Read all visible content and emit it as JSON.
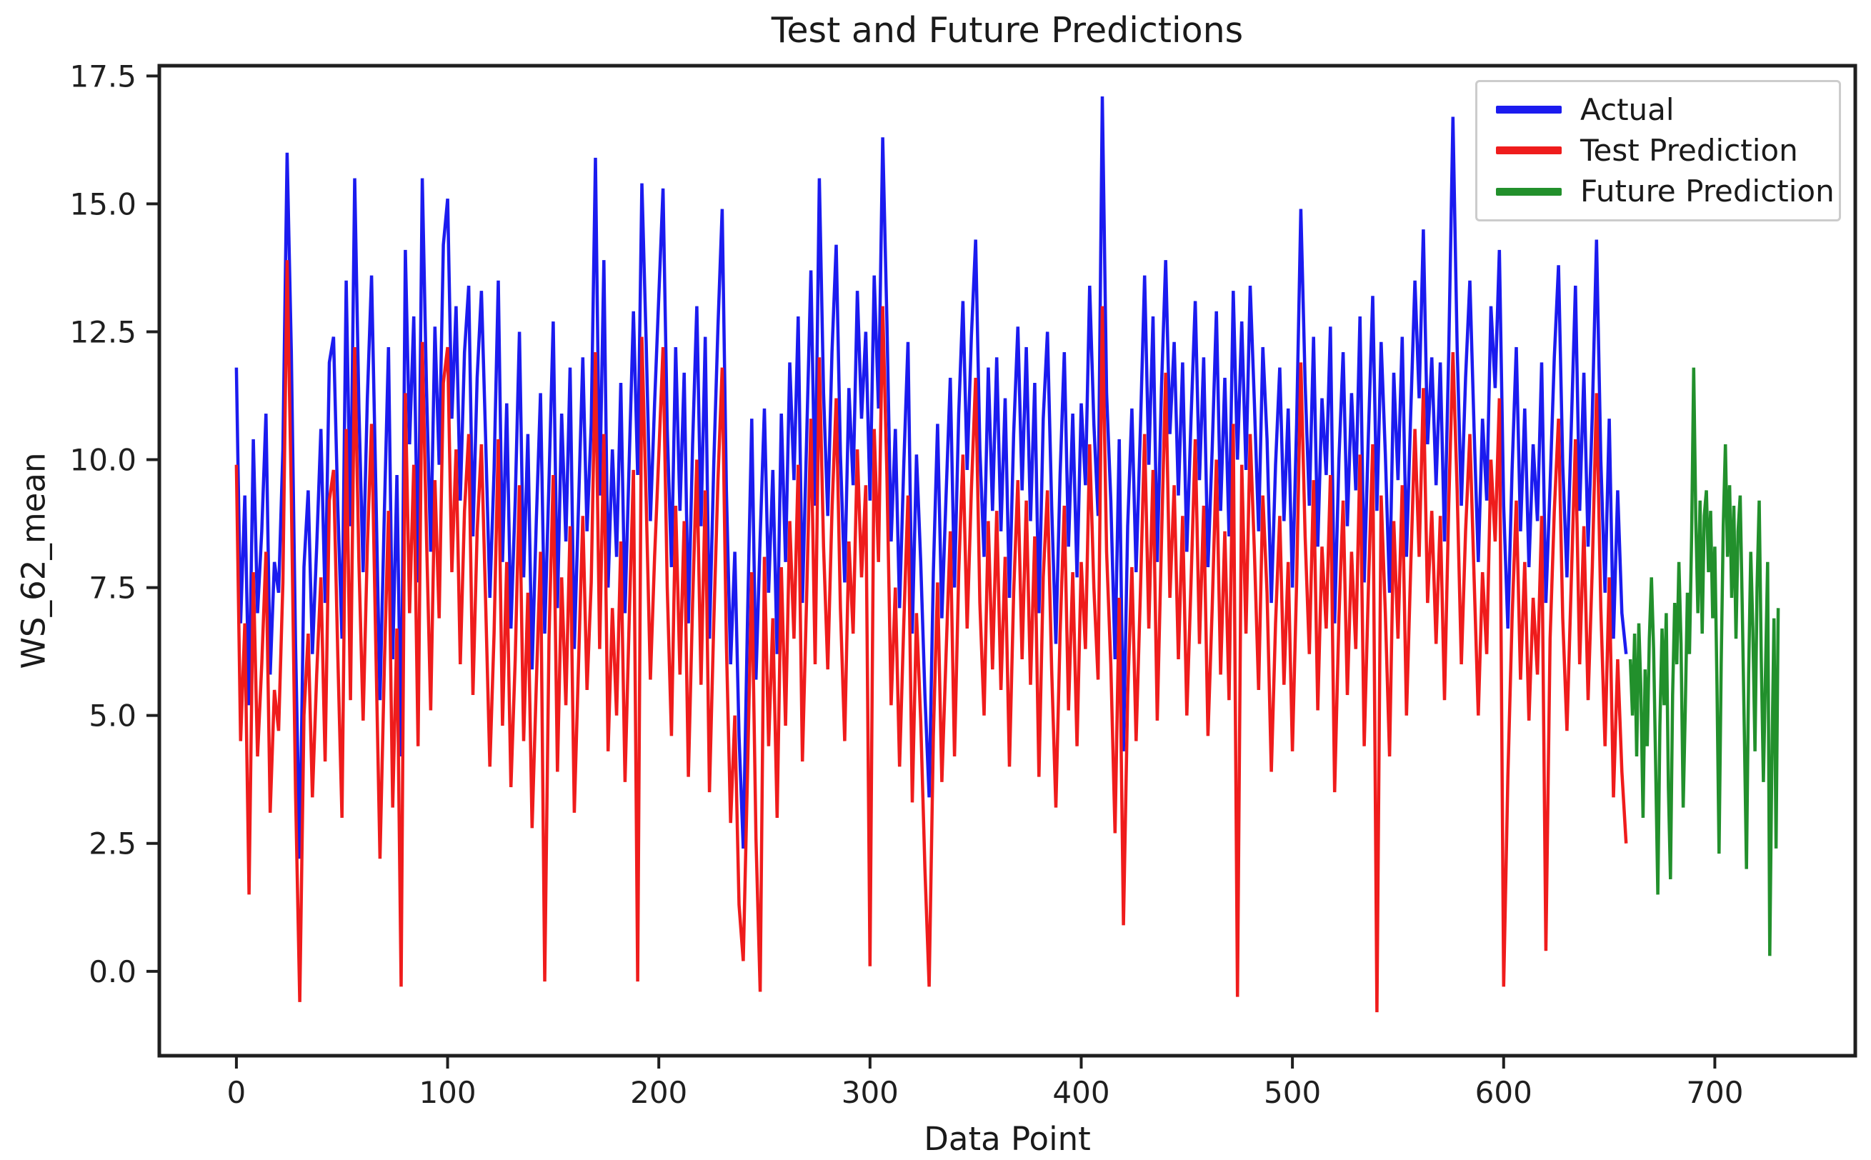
{
  "title": "Test and Future Predictions",
  "axes": {
    "xlabel": "Data Point",
    "ylabel": "WS_62_mean"
  },
  "legend": {
    "position": "upper right",
    "entries": [
      {
        "label": "Actual",
        "color": "#1b1bef"
      },
      {
        "label": "Test Prediction",
        "color": "#ef1c1c"
      },
      {
        "label": "Future Prediction",
        "color": "#22902c"
      }
    ]
  },
  "chart_data": {
    "type": "line",
    "title": "Test and Future Predictions",
    "xlabel": "Data Point",
    "ylabel": "WS_62_mean",
    "xlim": [
      -36.5,
      766.5
    ],
    "ylim": [
      -1.65,
      17.7
    ],
    "grid": false,
    "legend_position": "upper right",
    "x_ticks": [
      {
        "value": 0,
        "label": "0"
      },
      {
        "value": 100,
        "label": "100"
      },
      {
        "value": 200,
        "label": "200"
      },
      {
        "value": 300,
        "label": "300"
      },
      {
        "value": 400,
        "label": "400"
      },
      {
        "value": 500,
        "label": "500"
      },
      {
        "value": 600,
        "label": "600"
      },
      {
        "value": 700,
        "label": "700"
      }
    ],
    "y_ticks": [
      {
        "value": 0,
        "label": "0.0"
      },
      {
        "value": 2.5,
        "label": "2.5"
      },
      {
        "value": 5,
        "label": "5.0"
      },
      {
        "value": 7.5,
        "label": "7.5"
      },
      {
        "value": 10,
        "label": "10.0"
      },
      {
        "value": 12.5,
        "label": "12.5"
      },
      {
        "value": 15,
        "label": "15.0"
      },
      {
        "value": 17.5,
        "label": "17.5"
      }
    ],
    "series": [
      {
        "name": "Actual",
        "color": "#1b1bef",
        "x_start": 0,
        "x_step": 2,
        "values": [
          11.8,
          6.8,
          9.3,
          5.2,
          10.4,
          7.0,
          8.6,
          10.9,
          5.8,
          8.0,
          7.4,
          10.2,
          16.0,
          12.1,
          6.4,
          2.2,
          7.9,
          9.4,
          6.2,
          8.3,
          10.6,
          7.2,
          11.9,
          12.4,
          9.1,
          6.5,
          13.5,
          8.7,
          15.5,
          11.0,
          7.8,
          11.2,
          13.6,
          9.5,
          5.3,
          8.9,
          12.2,
          6.1,
          9.7,
          4.2,
          14.1,
          10.3,
          12.8,
          7.6,
          15.5,
          11.4,
          8.2,
          12.6,
          9.9,
          14.2,
          15.1,
          10.8,
          13.0,
          9.2,
          12.1,
          13.4,
          8.5,
          11.6,
          13.3,
          10.4,
          7.3,
          9.8,
          13.5,
          8.0,
          11.1,
          6.7,
          9.2,
          12.5,
          7.7,
          10.5,
          5.9,
          8.8,
          11.3,
          6.6,
          9.6,
          12.7,
          7.1,
          10.9,
          8.4,
          11.8,
          6.3,
          9.1,
          12.0,
          8.6,
          10.7,
          15.9,
          9.3,
          13.9,
          7.5,
          10.2,
          8.1,
          11.5,
          7.0,
          10.0,
          12.9,
          9.7,
          15.4,
          12.3,
          8.8,
          11.1,
          13.2,
          15.3,
          10.6,
          7.9,
          12.2,
          9.0,
          11.7,
          6.8,
          10.3,
          13.0,
          8.7,
          12.4,
          6.5,
          9.9,
          12.6,
          14.9,
          9.4,
          6.0,
          8.2,
          4.6,
          2.4,
          6.9,
          10.8,
          5.7,
          8.5,
          11.0,
          7.4,
          9.8,
          6.2,
          10.9,
          8.0,
          11.9,
          9.6,
          12.8,
          7.2,
          10.4,
          13.7,
          9.1,
          15.5,
          11.3,
          8.9,
          12.1,
          14.2,
          10.1,
          7.6,
          11.4,
          9.5,
          13.3,
          10.8,
          12.5,
          9.2,
          13.6,
          11.0,
          16.3,
          12.7,
          8.4,
          10.6,
          7.1,
          9.9,
          12.3,
          6.6,
          10.1,
          8.0,
          5.4,
          3.4,
          7.8,
          10.7,
          6.9,
          9.3,
          11.6,
          7.5,
          10.9,
          13.1,
          9.8,
          12.4,
          14.3,
          10.2,
          8.1,
          11.8,
          9.0,
          12.0,
          8.6,
          11.2,
          7.3,
          10.5,
          12.6,
          9.4,
          12.2,
          8.8,
          11.5,
          7.0,
          10.8,
          12.5,
          9.1,
          6.4,
          9.7,
          12.1,
          8.3,
          10.9,
          7.7,
          11.1,
          9.5,
          13.4,
          10.7,
          8.9,
          17.1,
          11.3,
          9.2,
          6.1,
          10.4,
          4.3,
          8.7,
          11.0,
          7.8,
          10.6,
          13.6,
          9.9,
          12.8,
          8.0,
          11.4,
          13.9,
          10.5,
          12.3,
          9.3,
          11.9,
          8.2,
          10.8,
          13.1,
          9.6,
          12.0,
          7.9,
          10.2,
          12.9,
          9.0,
          11.6,
          8.5,
          13.3,
          10.0,
          12.7,
          9.8,
          13.4,
          11.1,
          8.6,
          12.2,
          10.4,
          7.2,
          9.9,
          11.8,
          8.8,
          11.0,
          7.5,
          10.7,
          14.9,
          11.5,
          9.1,
          12.4,
          8.3,
          11.2,
          9.7,
          12.6,
          6.8,
          10.0,
          12.1,
          8.7,
          11.3,
          9.4,
          12.8,
          7.6,
          10.5,
          13.2,
          9.0,
          12.3,
          10.1,
          7.4,
          11.7,
          9.6,
          12.4,
          8.1,
          10.9,
          13.5,
          11.2,
          14.5,
          10.3,
          12.0,
          9.5,
          11.9,
          8.4,
          12.1,
          16.7,
          12.2,
          9.1,
          11.6,
          13.5,
          10.6,
          8.0,
          10.8,
          9.2,
          13.0,
          11.4,
          14.1,
          9.1,
          6.7,
          9.8,
          12.2,
          8.6,
          11.0,
          7.9,
          10.3,
          8.8,
          11.9,
          7.2,
          9.5,
          12.0,
          13.8,
          9.9,
          7.7,
          10.6,
          13.4,
          9.0,
          11.7,
          8.3,
          10.9,
          14.3,
          10.0,
          7.4,
          10.8,
          6.5,
          9.4,
          7.0,
          6.2
        ]
      },
      {
        "name": "Test Prediction",
        "color": "#ef1c1c",
        "x_start": 0,
        "x_step": 2,
        "values": [
          9.9,
          4.5,
          6.8,
          1.5,
          7.8,
          4.2,
          6.0,
          8.2,
          3.1,
          5.5,
          4.7,
          7.6,
          13.9,
          9.3,
          3.5,
          -0.6,
          5.0,
          6.6,
          3.4,
          5.8,
          7.7,
          4.1,
          9.2,
          9.8,
          6.2,
          3.0,
          10.6,
          5.3,
          12.2,
          8.0,
          4.9,
          8.3,
          10.7,
          6.4,
          2.2,
          5.9,
          9.0,
          3.2,
          6.7,
          -0.3,
          11.3,
          7.0,
          9.9,
          4.4,
          12.3,
          8.5,
          5.1,
          9.6,
          6.9,
          11.5,
          12.2,
          7.8,
          10.2,
          6.0,
          9.0,
          10.5,
          5.4,
          8.6,
          10.3,
          7.2,
          4.0,
          6.6,
          10.4,
          4.8,
          8.0,
          3.6,
          6.1,
          9.5,
          4.5,
          7.4,
          2.8,
          5.6,
          8.2,
          -0.2,
          6.5,
          9.7,
          3.9,
          7.7,
          5.2,
          8.7,
          3.1,
          6.0,
          8.9,
          5.5,
          7.6,
          12.1,
          6.3,
          10.5,
          4.3,
          7.1,
          5.0,
          8.4,
          3.7,
          6.9,
          9.8,
          -0.2,
          12.4,
          9.2,
          5.7,
          8.1,
          10.1,
          12.2,
          7.5,
          4.6,
          9.1,
          5.8,
          8.8,
          3.8,
          7.2,
          10.0,
          5.6,
          9.4,
          3.5,
          6.8,
          9.6,
          11.8,
          6.4,
          2.9,
          5.0,
          1.3,
          0.2,
          3.9,
          7.8,
          2.6,
          -0.4,
          8.1,
          4.4,
          6.9,
          3.0,
          7.9,
          4.8,
          8.8,
          6.5,
          9.9,
          4.1,
          7.3,
          10.8,
          6.0,
          12.0,
          8.3,
          5.9,
          9.0,
          11.2,
          7.1,
          4.5,
          8.4,
          6.6,
          10.2,
          7.7,
          9.5,
          0.1,
          10.6,
          8.0,
          13.0,
          9.7,
          5.2,
          7.5,
          4.0,
          6.8,
          9.3,
          3.3,
          7.0,
          4.9,
          2.0,
          -0.3,
          4.6,
          7.6,
          3.7,
          6.2,
          8.6,
          4.2,
          7.8,
          10.1,
          6.7,
          9.4,
          11.6,
          7.2,
          5.0,
          8.8,
          5.9,
          9.0,
          5.5,
          8.1,
          4.0,
          7.4,
          9.6,
          6.1,
          9.2,
          5.6,
          8.5,
          3.8,
          7.7,
          9.4,
          5.9,
          3.2,
          6.6,
          9.1,
          5.1,
          7.8,
          4.4,
          8.0,
          6.3,
          10.3,
          7.5,
          5.7,
          13.0,
          8.2,
          6.0,
          2.7,
          7.3,
          0.9,
          5.4,
          7.9,
          4.5,
          7.4,
          10.5,
          6.7,
          9.8,
          4.9,
          8.4,
          11.7,
          7.3,
          9.5,
          6.1,
          8.9,
          5.0,
          7.6,
          10.4,
          6.4,
          9.1,
          4.6,
          7.1,
          10.0,
          5.8,
          8.6,
          5.3,
          10.7,
          -0.5,
          9.9,
          6.6,
          10.5,
          8.2,
          5.5,
          9.3,
          7.4,
          3.9,
          6.8,
          8.9,
          5.6,
          8.0,
          4.3,
          7.6,
          11.9,
          8.5,
          6.2,
          9.6,
          5.1,
          8.3,
          6.7,
          9.7,
          3.5,
          6.9,
          9.2,
          5.4,
          8.2,
          6.3,
          10.1,
          4.4,
          7.5,
          10.3,
          -0.8,
          9.3,
          7.0,
          4.2,
          8.8,
          6.5,
          9.5,
          5.0,
          7.9,
          10.6,
          8.1,
          11.4,
          7.2,
          9.0,
          6.4,
          8.9,
          5.3,
          9.1,
          12.1,
          9.4,
          6.0,
          8.6,
          10.5,
          7.7,
          5.0,
          7.8,
          6.2,
          10.0,
          8.4,
          11.2,
          -0.3,
          3.8,
          6.9,
          9.2,
          5.7,
          8.0,
          4.9,
          7.3,
          5.8,
          8.9,
          0.4,
          6.5,
          9.0,
          10.8,
          6.9,
          4.7,
          7.6,
          10.4,
          6.0,
          8.7,
          5.3,
          7.9,
          11.3,
          7.1,
          4.4,
          7.7,
          3.4,
          6.1,
          3.9,
          2.5
        ]
      },
      {
        "name": "Future Prediction",
        "color": "#22902c",
        "x_start": 660,
        "x_step": 1,
        "values": [
          6.1,
          5.0,
          6.6,
          4.2,
          6.8,
          5.5,
          3.0,
          5.9,
          4.4,
          6.5,
          7.7,
          6.3,
          4.0,
          1.5,
          4.8,
          6.7,
          5.2,
          7.0,
          3.6,
          1.8,
          5.4,
          7.2,
          6.0,
          8.0,
          6.4,
          3.2,
          5.1,
          7.4,
          6.2,
          8.5,
          11.8,
          8.8,
          7.0,
          9.2,
          6.6,
          8.9,
          9.4,
          7.8,
          9.0,
          6.9,
          8.3,
          5.6,
          2.3,
          6.0,
          8.7,
          10.3,
          8.1,
          9.5,
          7.3,
          9.1,
          6.5,
          8.6,
          9.3,
          7.1,
          4.6,
          2.0,
          5.8,
          8.2,
          6.7,
          4.3,
          7.5,
          9.2,
          6.1,
          3.7,
          5.9,
          8.0,
          0.3,
          4.1,
          6.9,
          2.4,
          7.1
        ]
      }
    ]
  }
}
